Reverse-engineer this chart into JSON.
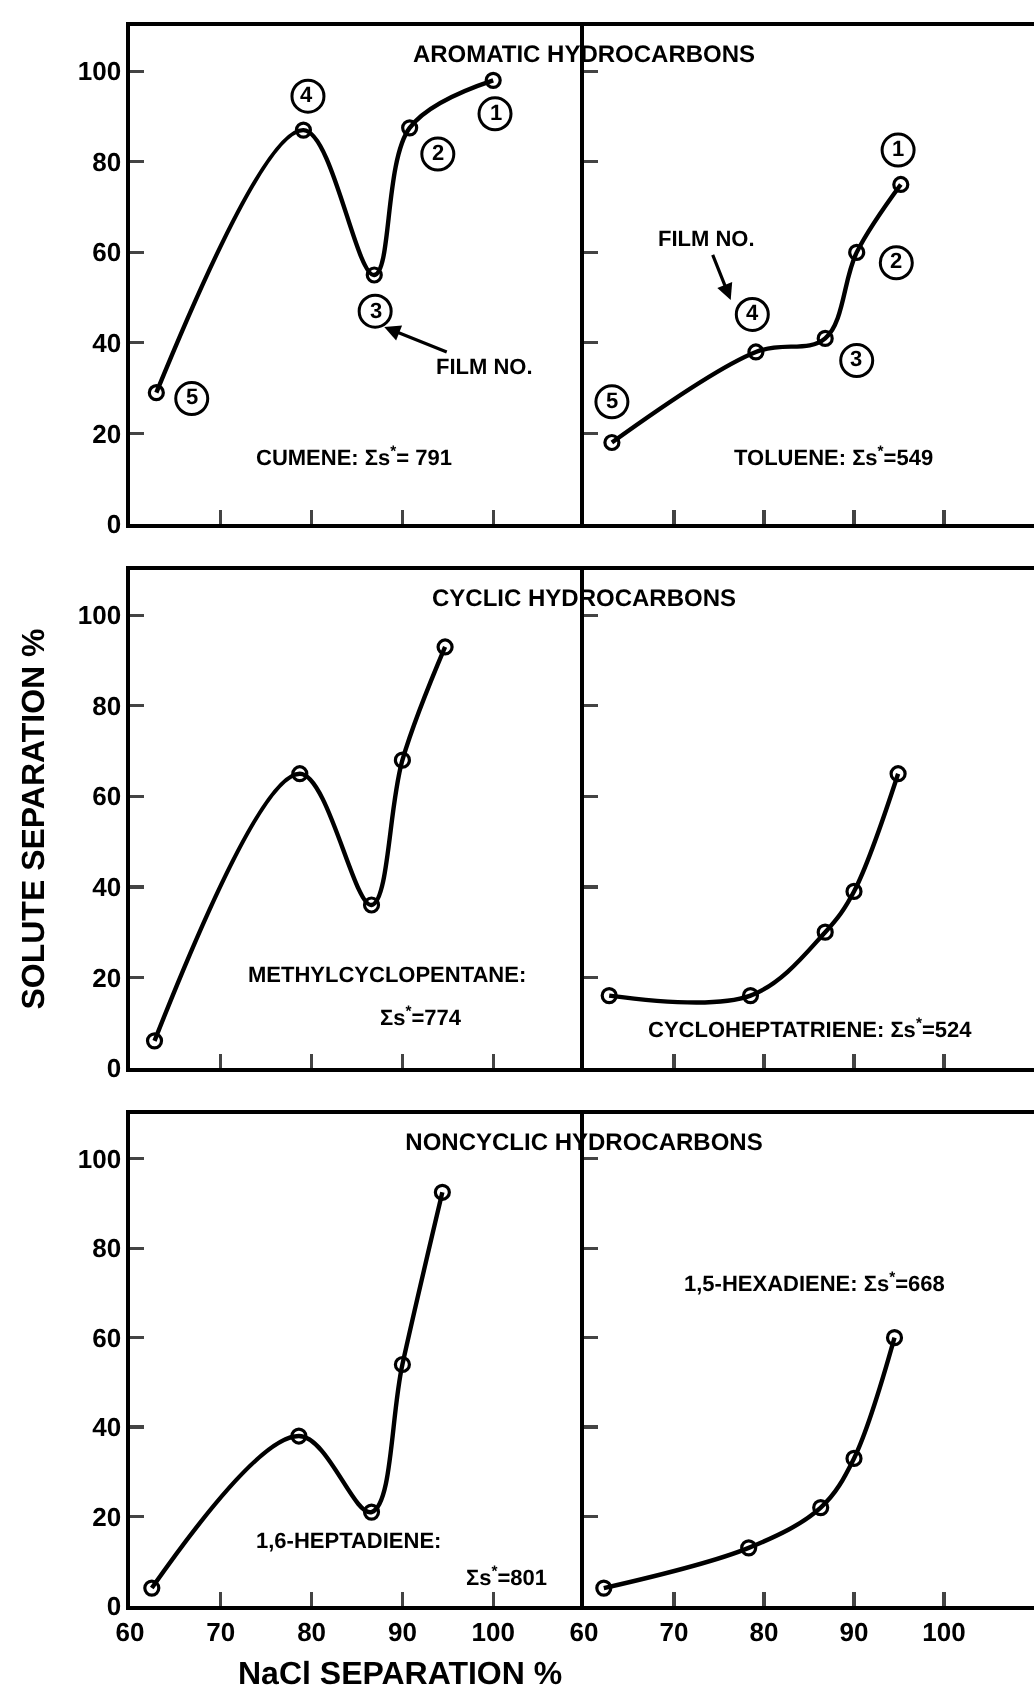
{
  "chart_data": [
    {
      "type": "line",
      "title": "AROMATIC HYDROCARBONS",
      "x": [
        62.9,
        79.1,
        86.9,
        90.8,
        100
      ],
      "values": [
        29,
        87,
        55,
        87.5,
        98
      ],
      "color": "#000000",
      "xlim": [
        60,
        110
      ],
      "ylim": [
        0,
        110
      ],
      "xticks": [
        60,
        70,
        80,
        90,
        100
      ],
      "yticks": [
        0,
        20,
        40,
        60,
        80,
        100
      ],
      "tick_labels": "y",
      "marker": "circle",
      "grid": false,
      "legend": false,
      "annotations": [
        {
          "text": "5",
          "x": 66.8,
          "y": 27.7
        },
        {
          "text": "4",
          "x": 79.6,
          "y": 94.5
        },
        {
          "text": "3",
          "x": 87.0,
          "y": 47.0
        },
        {
          "text": "2",
          "x": 93.9,
          "y": 81.7
        },
        {
          "text": "1",
          "x": 100.2,
          "y": 90.6
        },
        "CUMENE: Σs$^{*}$= 791",
        "FILM NO."
      ]
    },
    {
      "type": "line",
      "x": [
        63.1,
        79.1,
        86.8,
        90.3,
        95.2
      ],
      "values": [
        18,
        38,
        41,
        60,
        75
      ],
      "color": "#000000",
      "xlim": [
        60,
        110
      ],
      "ylim": [
        0,
        110
      ],
      "xticks": [
        60,
        70,
        80,
        90,
        100
      ],
      "yticks": [
        0,
        20,
        40,
        60,
        80,
        100
      ],
      "tick_labels": false,
      "marker": "circle",
      "grid": false,
      "legend": false,
      "annotations": [
        {
          "text": "5",
          "x": 63.1,
          "y": 27
        },
        {
          "text": "4",
          "x": 78.7,
          "y": 46.3
        },
        {
          "text": "3",
          "x": 90.3,
          "y": 36.1
        },
        {
          "text": "2",
          "x": 94.7,
          "y": 57.7
        },
        {
          "text": "1",
          "x": 94.9,
          "y": 82.6
        },
        "TOLUENE: Σs$^{*}$=549",
        "FILM NO."
      ]
    },
    {
      "type": "line",
      "title": "CYCLIC HYDROCARBONS",
      "ylabel": "SOLUTE SEPARATION %",
      "x": [
        62.7,
        78.7,
        86.6,
        90,
        94.7
      ],
      "values": [
        6,
        65,
        36,
        68,
        93
      ],
      "color": "#000000",
      "xlim": [
        60,
        110
      ],
      "ylim": [
        0,
        110
      ],
      "xticks": [
        60,
        70,
        80,
        90,
        100
      ],
      "yticks": [
        0,
        20,
        40,
        60,
        80,
        100
      ],
      "tick_labels": "y",
      "marker": "circle",
      "grid": false,
      "legend": false,
      "annotations": [
        "METHYLCYCLOPENTANE:",
        "Σs$^{*}$=774"
      ]
    },
    {
      "type": "line",
      "x": [
        62.8,
        78.5,
        86.8,
        90,
        94.9
      ],
      "values": [
        16,
        16,
        30,
        39,
        65
      ],
      "color": "#000000",
      "xlim": [
        60,
        110
      ],
      "ylim": [
        0,
        110
      ],
      "xticks": [
        60,
        70,
        80,
        90,
        100
      ],
      "yticks": [
        0,
        20,
        40,
        60,
        80,
        100
      ],
      "tick_labels": false,
      "marker": "circle",
      "grid": false,
      "legend": false,
      "annotations": [
        "CYCLOHEPTATRIENE: Σs$^{*}$=524"
      ]
    },
    {
      "type": "line",
      "title": "NONCYCLIC HYDROCARBONS",
      "xlabel": "NaCl SEPARATION %",
      "x": [
        62.4,
        78.6,
        86.6,
        90,
        94.4
      ],
      "values": [
        4,
        38,
        21,
        54,
        92.5
      ],
      "color": "#000000",
      "xlim": [
        60,
        110
      ],
      "ylim": [
        0,
        110
      ],
      "xticks": [
        60,
        70,
        80,
        90,
        100
      ],
      "yticks": [
        0,
        20,
        40,
        60,
        80,
        100
      ],
      "marker": "circle",
      "grid": false,
      "legend": false,
      "annotations": [
        "1,6-HEPTADIENE:",
        "Σs$^{*}$=801"
      ]
    },
    {
      "type": "line",
      "x": [
        62.2,
        78.3,
        86.3,
        90,
        94.5
      ],
      "values": [
        4,
        13,
        22,
        33,
        60
      ],
      "color": "#000000",
      "xlim": [
        60,
        110
      ],
      "ylim": [
        0,
        110
      ],
      "xticks": [
        60,
        70,
        80,
        90,
        100
      ],
      "yticks": [
        0,
        20,
        40,
        60,
        80,
        100
      ],
      "tick_labels": "x",
      "marker": "circle",
      "grid": false,
      "legend": false,
      "annotations": [
        "1,5-HEXADIENE: Σs$^{*}$=668"
      ]
    }
  ]
}
